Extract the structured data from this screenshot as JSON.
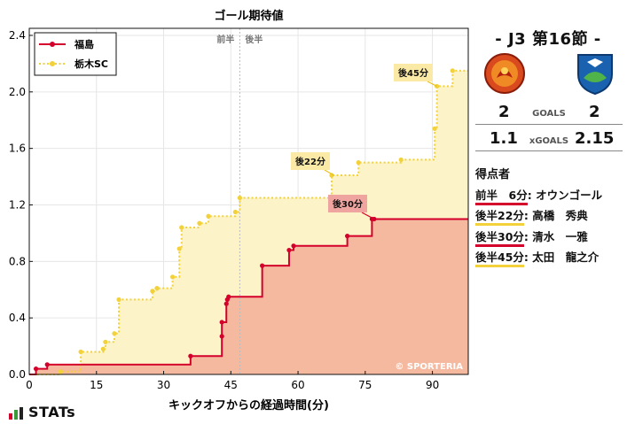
{
  "chart_data": {
    "type": "line",
    "title": "ゴール期待値",
    "xlabel": "キックオフからの経過時間(分)",
    "ylabel": "",
    "xlim": [
      0,
      98
    ],
    "ylim": [
      0,
      2.45
    ],
    "xticks": [
      0,
      15,
      30,
      45,
      60,
      75,
      90
    ],
    "yticks": [
      0.0,
      0.4,
      0.8,
      1.2,
      1.6,
      2.0,
      2.4
    ],
    "xtick_labels": [
      "0",
      "15",
      "30",
      "45",
      "60",
      "75",
      "90"
    ],
    "ytick_labels": [
      "0.0",
      "0.4",
      "0.8",
      "1.2",
      "1.6",
      "2.0",
      "2.4"
    ],
    "half_line_x": 47,
    "half_labels": {
      "first": "前半",
      "second": "後半"
    },
    "legend_position": "top-left",
    "watermark": "© SPORTERIA",
    "series": [
      {
        "name": "福島",
        "color": "#d4002b",
        "fill": "#f5b9a0",
        "style": "solid",
        "points": [
          [
            0,
            0.0
          ],
          [
            1.5,
            0.04
          ],
          [
            4,
            0.07
          ],
          [
            36,
            0.13
          ],
          [
            43,
            0.27
          ],
          [
            43,
            0.37
          ],
          [
            44,
            0.5
          ],
          [
            44.2,
            0.53
          ],
          [
            44.5,
            0.55
          ],
          [
            52,
            0.77
          ],
          [
            58,
            0.88
          ],
          [
            59,
            0.91
          ],
          [
            71,
            0.98
          ],
          [
            76.5,
            1.1
          ],
          [
            77,
            1.1
          ],
          [
            98,
            1.1
          ]
        ]
      },
      {
        "name": "栃木SC",
        "color": "#f2d13a",
        "fill": "#fdf3c8",
        "style": "dotted",
        "points": [
          [
            0,
            0.0
          ],
          [
            7,
            0.02
          ],
          [
            11.5,
            0.16
          ],
          [
            16.5,
            0.18
          ],
          [
            17,
            0.23
          ],
          [
            19,
            0.29
          ],
          [
            20,
            0.53
          ],
          [
            27.5,
            0.59
          ],
          [
            28.5,
            0.61
          ],
          [
            32,
            0.69
          ],
          [
            33.5,
            0.89
          ],
          [
            34,
            1.04
          ],
          [
            38,
            1.07
          ],
          [
            40,
            1.12
          ],
          [
            46,
            1.15
          ],
          [
            47,
            1.25
          ],
          [
            67.5,
            1.41
          ],
          [
            73.5,
            1.5
          ],
          [
            83,
            1.52
          ],
          [
            90.5,
            1.74
          ],
          [
            91,
            2.04
          ],
          [
            94.5,
            2.15
          ],
          [
            98,
            2.15
          ]
        ]
      }
    ],
    "annotations": [
      {
        "text": "後45分",
        "team": "away",
        "x": 91,
        "y": 2.04
      },
      {
        "text": "後22分",
        "team": "away",
        "x": 68,
        "y": 1.41
      },
      {
        "text": "後30分",
        "team": "home",
        "x": 77,
        "y": 1.1
      }
    ]
  },
  "match": {
    "title": "-  J3 第16節  -",
    "home_score": "2",
    "away_score": "2",
    "goals_label": "GOALS",
    "home_xg": "1.1",
    "away_xg": "2.15",
    "xg_label": "xGOALS",
    "home_color": "#d4002b",
    "away_color": "#f2d13a"
  },
  "scorers": {
    "heading": "得点者",
    "items": [
      {
        "time": "前半　6分",
        "name": "オウンゴール",
        "team": "home"
      },
      {
        "time": "後半22分",
        "name": "高橋　秀典",
        "team": "away"
      },
      {
        "time": "後半30分",
        "name": "清水　一雅",
        "team": "home"
      },
      {
        "time": "後半45分",
        "name": "太田　龍之介",
        "team": "away"
      }
    ]
  },
  "brand": {
    "logo_text": "STATs"
  }
}
